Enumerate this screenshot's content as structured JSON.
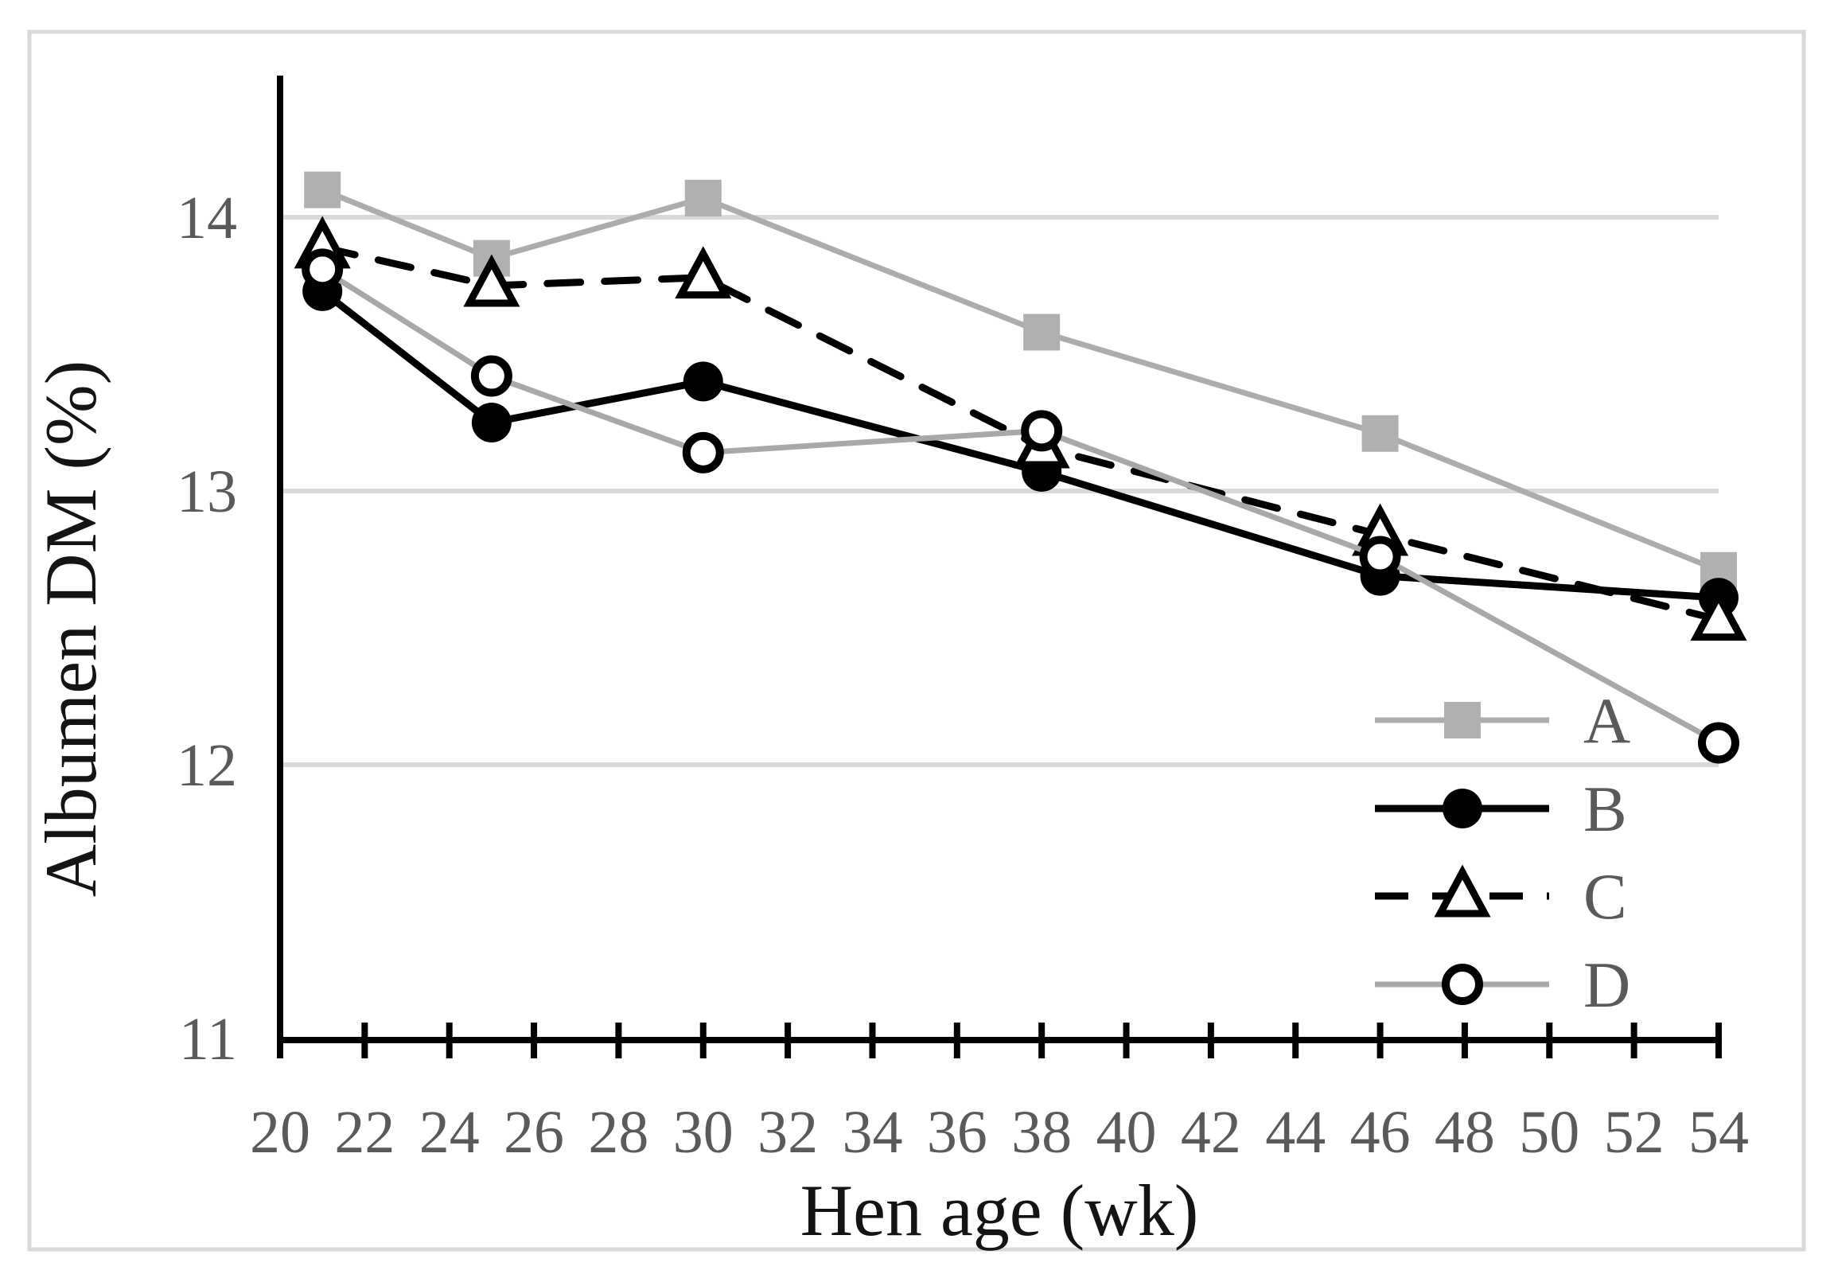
{
  "figure": {
    "background": "#ffffff",
    "frame_color": "#d9d9d9"
  },
  "chart_data": {
    "type": "line",
    "title": "",
    "xlabel": "Hen age (wk)",
    "ylabel": "Albumen DM (%)",
    "x": [
      21,
      25,
      30,
      38,
      46,
      54
    ],
    "series": [
      {
        "name": "A",
        "values": [
          14.1,
          13.85,
          14.07,
          13.58,
          13.21,
          12.71
        ],
        "line_color": "#acacac",
        "line_style": "solid",
        "marker": "square",
        "marker_fill": "#b0b0b0",
        "marker_stroke": "none"
      },
      {
        "name": "B",
        "values": [
          13.73,
          13.25,
          13.4,
          13.07,
          12.69,
          12.61
        ],
        "line_color": "#000000",
        "line_style": "solid",
        "marker": "circle",
        "marker_fill": "#000000",
        "marker_stroke": "none"
      },
      {
        "name": "C",
        "values": [
          13.89,
          13.75,
          13.78,
          13.16,
          12.84,
          12.53
        ],
        "line_color": "#000000",
        "line_style": "dashed",
        "marker": "triangle",
        "marker_fill": "#ffffff",
        "marker_stroke": "#000000"
      },
      {
        "name": "D",
        "values": [
          13.81,
          13.42,
          13.14,
          13.22,
          12.76,
          12.08
        ],
        "line_color": "#a8a8a8",
        "line_style": "solid",
        "marker": "circle-open",
        "marker_fill": "#ffffff",
        "marker_stroke": "#000000"
      }
    ],
    "x_ticks": [
      20,
      22,
      24,
      26,
      28,
      30,
      32,
      34,
      36,
      38,
      40,
      42,
      44,
      46,
      48,
      50,
      52,
      54
    ],
    "y_ticks": [
      11,
      12,
      13,
      14
    ],
    "xlim": [
      20,
      54
    ],
    "ylim": [
      11,
      14.5
    ],
    "grid": "horizontal",
    "grid_color": "#d9d9d9",
    "axis_color": "#000000",
    "tick_label_color": "#5a5a5a",
    "legend_position": "inside-right",
    "legend_labels": [
      "A",
      "B",
      "C",
      "D"
    ]
  }
}
